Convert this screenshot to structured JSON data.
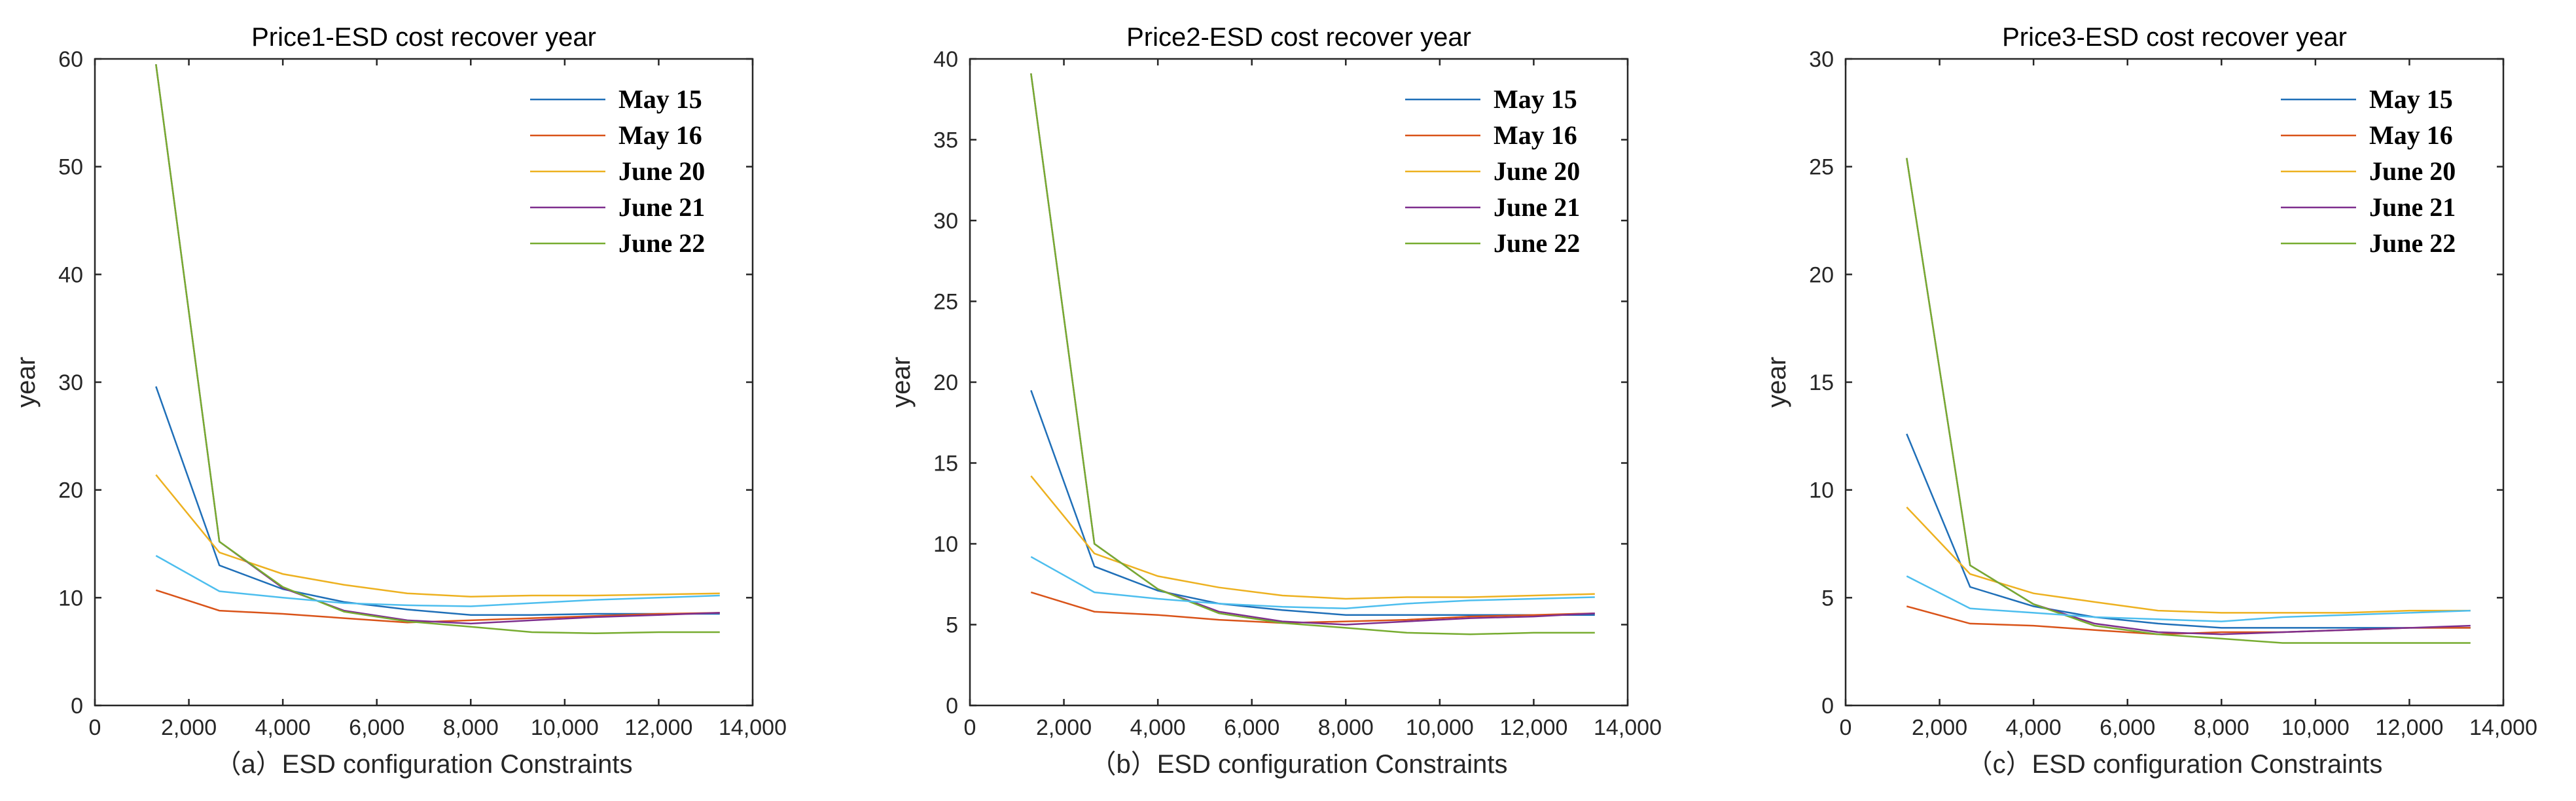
{
  "chart_data": [
    {
      "type": "line",
      "title": "Price1-ESD cost recover year",
      "xlabel": "（a）ESD configuration Constraints",
      "ylabel": "year",
      "xlim": [
        0,
        14000
      ],
      "ylim": [
        0,
        60
      ],
      "xticks": [
        0,
        2000,
        4000,
        6000,
        8000,
        10000,
        12000,
        14000
      ],
      "xtick_labels": [
        "0",
        "2,000",
        "4,000",
        "6,000",
        "8,000",
        "10,000",
        "12,000",
        "14,000"
      ],
      "yticks": [
        0,
        10,
        20,
        30,
        40,
        50,
        60
      ],
      "ytick_labels": [
        "0",
        "10",
        "20",
        "30",
        "40",
        "50",
        "60"
      ],
      "legend_position": "top-right",
      "series": [
        {
          "name": "May 15",
          "color": "#1f6fb8",
          "in_legend": true,
          "x": [
            1300,
            2650,
            4000,
            5300,
            6650,
            8000,
            9300,
            10650,
            12000,
            13300
          ],
          "y": [
            29.6,
            13.0,
            10.8,
            9.6,
            8.9,
            8.4,
            8.4,
            8.5,
            8.5,
            8.5
          ]
        },
        {
          "name": "May 16",
          "color": "#d95319",
          "in_legend": true,
          "x": [
            1300,
            2650,
            4000,
            5300,
            6650,
            8000,
            9300,
            10650,
            12000,
            13300
          ],
          "y": [
            10.7,
            8.8,
            8.5,
            8.1,
            7.7,
            7.9,
            8.1,
            8.3,
            8.5,
            8.6
          ]
        },
        {
          "name": "June 20",
          "color": "#edb120",
          "in_legend": true,
          "x": [
            1300,
            2650,
            4000,
            5300,
            6650,
            8000,
            9300,
            10650,
            12000,
            13300
          ],
          "y": [
            21.4,
            14.2,
            12.2,
            11.2,
            10.4,
            10.1,
            10.2,
            10.2,
            10.3,
            10.4
          ]
        },
        {
          "name": "June 21",
          "color": "#7e2f8e",
          "in_legend": true,
          "x": [
            1300,
            2650,
            4000,
            5300,
            6650,
            8000,
            9300,
            10650,
            12000,
            13300
          ],
          "y": [
            59.5,
            15.2,
            10.9,
            8.8,
            7.9,
            7.6,
            7.9,
            8.2,
            8.4,
            8.6
          ]
        },
        {
          "name": "June 22",
          "color": "#77ac30",
          "in_legend": true,
          "x": [
            1300,
            2650,
            4000,
            5300,
            6650,
            8000,
            9300,
            10650,
            12000,
            13300
          ],
          "y": [
            59.5,
            15.2,
            11.0,
            8.7,
            7.8,
            7.3,
            6.8,
            6.7,
            6.8,
            6.8
          ]
        },
        {
          "name": "",
          "color": "#4dbeee",
          "in_legend": false,
          "x": [
            1300,
            2650,
            4000,
            5300,
            6650,
            8000,
            9300,
            10650,
            12000,
            13300
          ],
          "y": [
            13.9,
            10.6,
            10.0,
            9.5,
            9.3,
            9.2,
            9.5,
            9.8,
            10.0,
            10.2
          ]
        }
      ]
    },
    {
      "type": "line",
      "title": "Price2-ESD cost recover year",
      "xlabel": "（b）ESD configuration Constraints",
      "ylabel": "year",
      "xlim": [
        0,
        14000
      ],
      "ylim": [
        0,
        40
      ],
      "xticks": [
        0,
        2000,
        4000,
        6000,
        8000,
        10000,
        12000,
        14000
      ],
      "xtick_labels": [
        "0",
        "2,000",
        "4,000",
        "6,000",
        "8,000",
        "10,000",
        "12,000",
        "14,000"
      ],
      "yticks": [
        0,
        5,
        10,
        15,
        20,
        25,
        30,
        35,
        40
      ],
      "ytick_labels": [
        "0",
        "5",
        "10",
        "15",
        "20",
        "25",
        "30",
        "35",
        "40"
      ],
      "legend_position": "top-right",
      "series": [
        {
          "name": "May 15",
          "color": "#1f6fb8",
          "in_legend": true,
          "x": [
            1300,
            2650,
            4000,
            5300,
            6650,
            8000,
            9300,
            10650,
            12000,
            13300
          ],
          "y": [
            19.5,
            8.6,
            7.1,
            6.3,
            5.9,
            5.6,
            5.6,
            5.6,
            5.6,
            5.6
          ]
        },
        {
          "name": "May 16",
          "color": "#d95319",
          "in_legend": true,
          "x": [
            1300,
            2650,
            4000,
            5300,
            6650,
            8000,
            9300,
            10650,
            12000,
            13300
          ],
          "y": [
            7.0,
            5.8,
            5.6,
            5.3,
            5.1,
            5.2,
            5.3,
            5.5,
            5.6,
            5.7
          ]
        },
        {
          "name": "June 20",
          "color": "#edb120",
          "in_legend": true,
          "x": [
            1300,
            2650,
            4000,
            5300,
            6650,
            8000,
            9300,
            10650,
            12000,
            13300
          ],
          "y": [
            14.2,
            9.4,
            8.0,
            7.3,
            6.8,
            6.6,
            6.7,
            6.7,
            6.8,
            6.9
          ]
        },
        {
          "name": "June 21",
          "color": "#7e2f8e",
          "in_legend": true,
          "x": [
            1300,
            2650,
            4000,
            5300,
            6650,
            8000,
            9300,
            10650,
            12000,
            13300
          ],
          "y": [
            39.1,
            10.0,
            7.2,
            5.8,
            5.2,
            5.0,
            5.2,
            5.4,
            5.5,
            5.7
          ]
        },
        {
          "name": "June 22",
          "color": "#77ac30",
          "in_legend": true,
          "x": [
            1300,
            2650,
            4000,
            5300,
            6650,
            8000,
            9300,
            10650,
            12000,
            13300
          ],
          "y": [
            39.1,
            10.0,
            7.2,
            5.7,
            5.1,
            4.8,
            4.5,
            4.4,
            4.5,
            4.5
          ]
        },
        {
          "name": "",
          "color": "#4dbeee",
          "in_legend": false,
          "x": [
            1300,
            2650,
            4000,
            5300,
            6650,
            8000,
            9300,
            10650,
            12000,
            13300
          ],
          "y": [
            9.2,
            7.0,
            6.6,
            6.3,
            6.1,
            6.0,
            6.3,
            6.5,
            6.6,
            6.7
          ]
        }
      ]
    },
    {
      "type": "line",
      "title": "Price3-ESD cost recover year",
      "xlabel": "（c）ESD configuration Constraints",
      "ylabel": "year",
      "xlim": [
        0,
        14000
      ],
      "ylim": [
        0,
        30
      ],
      "xticks": [
        0,
        2000,
        4000,
        6000,
        8000,
        10000,
        12000,
        14000
      ],
      "xtick_labels": [
        "0",
        "2,000",
        "4,000",
        "6,000",
        "8,000",
        "10,000",
        "12,000",
        "14,000"
      ],
      "yticks": [
        0,
        5,
        10,
        15,
        20,
        25,
        30
      ],
      "ytick_labels": [
        "0",
        "5",
        "10",
        "15",
        "20",
        "25",
        "30"
      ],
      "legend_position": "top-right",
      "series": [
        {
          "name": "May 15",
          "color": "#1f6fb8",
          "in_legend": true,
          "x": [
            1300,
            2650,
            4000,
            5300,
            6650,
            8000,
            9300,
            10650,
            12000,
            13300
          ],
          "y": [
            12.6,
            5.5,
            4.6,
            4.1,
            3.8,
            3.6,
            3.6,
            3.6,
            3.6,
            3.6
          ]
        },
        {
          "name": "May 16",
          "color": "#d95319",
          "in_legend": true,
          "x": [
            1300,
            2650,
            4000,
            5300,
            6650,
            8000,
            9300,
            10650,
            12000,
            13300
          ],
          "y": [
            4.6,
            3.8,
            3.7,
            3.5,
            3.3,
            3.4,
            3.4,
            3.5,
            3.6,
            3.6
          ]
        },
        {
          "name": "June 20",
          "color": "#edb120",
          "in_legend": true,
          "x": [
            1300,
            2650,
            4000,
            5300,
            6650,
            8000,
            9300,
            10650,
            12000,
            13300
          ],
          "y": [
            9.2,
            6.1,
            5.2,
            4.8,
            4.4,
            4.3,
            4.3,
            4.3,
            4.4,
            4.4
          ]
        },
        {
          "name": "June 21",
          "color": "#7e2f8e",
          "in_legend": true,
          "x": [
            1300,
            2650,
            4000,
            5300,
            6650,
            8000,
            9300,
            10650,
            12000,
            13300
          ],
          "y": [
            25.4,
            6.5,
            4.7,
            3.8,
            3.4,
            3.3,
            3.4,
            3.5,
            3.6,
            3.7
          ]
        },
        {
          "name": "June 22",
          "color": "#77ac30",
          "in_legend": true,
          "x": [
            1300,
            2650,
            4000,
            5300,
            6650,
            8000,
            9300,
            10650,
            12000,
            13300
          ],
          "y": [
            25.4,
            6.5,
            4.7,
            3.7,
            3.3,
            3.1,
            2.9,
            2.9,
            2.9,
            2.9
          ]
        },
        {
          "name": "",
          "color": "#4dbeee",
          "in_legend": false,
          "x": [
            1300,
            2650,
            4000,
            5300,
            6650,
            8000,
            9300,
            10650,
            12000,
            13300
          ],
          "y": [
            6.0,
            4.5,
            4.3,
            4.1,
            4.0,
            3.9,
            4.1,
            4.2,
            4.3,
            4.4
          ]
        }
      ]
    }
  ]
}
